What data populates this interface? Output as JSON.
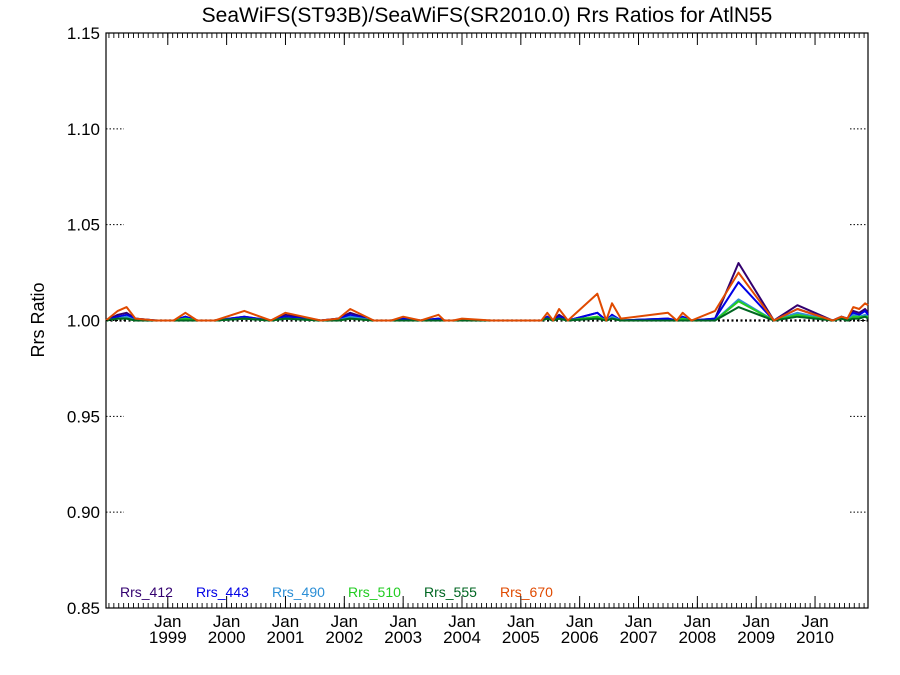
{
  "chart_data": {
    "type": "line",
    "title": "SeaWiFS(ST93B)/SeaWiFS(SR2010.0)  Rrs Ratios for AtlN55",
    "xlabel": "",
    "ylabel": "Rrs Ratio",
    "ylim": [
      0.85,
      1.15
    ],
    "xlim": [
      1997.95,
      2010.9
    ],
    "yticks": [
      "0.85",
      "0.90",
      "0.95",
      "1.00",
      "1.05",
      "1.10",
      "1.15"
    ],
    "xticks": [
      {
        "month": "Jan",
        "year": "1999"
      },
      {
        "month": "Jan",
        "year": "2000"
      },
      {
        "month": "Jan",
        "year": "2001"
      },
      {
        "month": "Jan",
        "year": "2002"
      },
      {
        "month": "Jan",
        "year": "2003"
      },
      {
        "month": "Jan",
        "year": "2004"
      },
      {
        "month": "Jan",
        "year": "2005"
      },
      {
        "month": "Jan",
        "year": "2006"
      },
      {
        "month": "Jan",
        "year": "2007"
      },
      {
        "month": "Jan",
        "year": "2008"
      },
      {
        "month": "Jan",
        "year": "2009"
      },
      {
        "month": "Jan",
        "year": "2010"
      }
    ],
    "reference_line": 1.0,
    "grid": false,
    "legend_position": "bottom-left",
    "x": [
      1997.95,
      1998.15,
      1998.3,
      1998.45,
      1998.8,
      1999.1,
      1999.3,
      1999.5,
      1999.8,
      2000.3,
      2000.75,
      2001.0,
      2001.6,
      2001.9,
      2002.1,
      2002.5,
      2002.8,
      2003.0,
      2003.3,
      2003.6,
      2003.7,
      2003.85,
      2004.0,
      2004.5,
      2005.0,
      2005.35,
      2005.45,
      2005.55,
      2005.65,
      2005.8,
      2006.3,
      2006.45,
      2006.55,
      2006.7,
      2007.5,
      2007.65,
      2007.75,
      2007.9,
      2008.3,
      2008.7,
      2009.3,
      2009.7,
      2010.3,
      2010.45,
      2010.55,
      2010.65,
      2010.75,
      2010.85,
      2010.9
    ],
    "series": [
      {
        "name": "Rrs_412",
        "color": "#33006F",
        "values": [
          1.0,
          1.003,
          1.004,
          1.001,
          1.0,
          1.0,
          1.002,
          1.0,
          1.0,
          1.002,
          1.0,
          1.003,
          1.0,
          1.001,
          1.004,
          1.0,
          1.0,
          1.001,
          1.0,
          1.001,
          1.0,
          1.0,
          1.0,
          1.0,
          1.0,
          1.0,
          1.002,
          1.0,
          1.003,
          1.0,
          1.004,
          1.0,
          1.003,
          1.0,
          1.001,
          1.0,
          1.002,
          1.0,
          1.001,
          1.03,
          1.0,
          1.008,
          1.0,
          1.002,
          1.001,
          1.005,
          1.004,
          1.006,
          1.004
        ]
      },
      {
        "name": "Rrs_443",
        "color": "#0000E6",
        "values": [
          1.0,
          1.002,
          1.003,
          1.001,
          1.0,
          1.0,
          1.002,
          1.0,
          1.0,
          1.002,
          1.0,
          1.002,
          1.0,
          1.001,
          1.003,
          1.0,
          1.0,
          1.001,
          1.0,
          1.001,
          1.0,
          1.0,
          1.0,
          1.0,
          1.0,
          1.0,
          1.002,
          1.0,
          1.002,
          1.0,
          1.004,
          1.0,
          1.003,
          1.0,
          1.001,
          1.0,
          1.002,
          1.0,
          1.001,
          1.02,
          1.0,
          1.006,
          1.0,
          1.002,
          1.001,
          1.004,
          1.003,
          1.005,
          1.003
        ]
      },
      {
        "name": "Rrs_490",
        "color": "#2C8FD6",
        "values": [
          1.0,
          1.001,
          1.002,
          1.0,
          1.0,
          1.0,
          1.001,
          1.0,
          1.0,
          1.001,
          1.0,
          1.001,
          1.0,
          1.0,
          1.002,
          1.0,
          1.0,
          1.0,
          1.0,
          1.0,
          1.0,
          1.0,
          1.0,
          1.0,
          1.0,
          1.0,
          1.001,
          1.0,
          1.001,
          1.0,
          1.002,
          1.0,
          1.002,
          1.0,
          1.0,
          1.0,
          1.001,
          1.0,
          1.0,
          1.011,
          1.0,
          1.004,
          1.0,
          1.001,
          1.0,
          1.003,
          1.002,
          1.003,
          1.002
        ]
      },
      {
        "name": "Rrs_510",
        "color": "#22CC22",
        "values": [
          1.0,
          1.001,
          1.001,
          1.0,
          1.0,
          1.0,
          1.001,
          1.0,
          1.0,
          1.001,
          1.0,
          1.001,
          1.0,
          1.0,
          1.001,
          1.0,
          1.0,
          1.0,
          1.0,
          1.0,
          1.0,
          1.0,
          1.0,
          1.0,
          1.0,
          1.0,
          1.001,
          1.0,
          1.001,
          1.0,
          1.002,
          1.0,
          1.001,
          1.0,
          1.0,
          1.0,
          1.001,
          1.0,
          1.0,
          1.01,
          1.0,
          1.003,
          1.0,
          1.001,
          1.0,
          1.002,
          1.002,
          1.002,
          1.002
        ]
      },
      {
        "name": "Rrs_555",
        "color": "#006622",
        "values": [
          1.0,
          1.001,
          1.001,
          1.0,
          1.0,
          1.0,
          1.0,
          1.0,
          1.0,
          1.001,
          1.0,
          1.001,
          1.0,
          1.0,
          1.001,
          1.0,
          1.0,
          1.0,
          1.0,
          1.0,
          1.0,
          1.0,
          1.0,
          1.0,
          1.0,
          1.0,
          1.001,
          1.0,
          1.001,
          1.0,
          1.001,
          1.0,
          1.001,
          1.0,
          1.0,
          1.0,
          1.0,
          1.0,
          1.0,
          1.007,
          1.0,
          1.002,
          1.0,
          1.001,
          1.0,
          1.001,
          1.001,
          1.002,
          1.001
        ]
      },
      {
        "name": "Rrs_670",
        "color": "#E04A00",
        "values": [
          1.0,
          1.005,
          1.007,
          1.001,
          1.0,
          1.0,
          1.004,
          1.0,
          1.0,
          1.005,
          1.0,
          1.004,
          1.0,
          1.001,
          1.006,
          1.0,
          1.0,
          1.002,
          1.0,
          1.003,
          1.0,
          1.0,
          1.001,
          1.0,
          1.0,
          1.0,
          1.004,
          1.0,
          1.006,
          1.0,
          1.014,
          1.0,
          1.009,
          1.001,
          1.004,
          1.0,
          1.004,
          1.0,
          1.005,
          1.025,
          1.0,
          1.006,
          1.0,
          1.002,
          1.001,
          1.007,
          1.006,
          1.009,
          1.008
        ]
      }
    ]
  }
}
